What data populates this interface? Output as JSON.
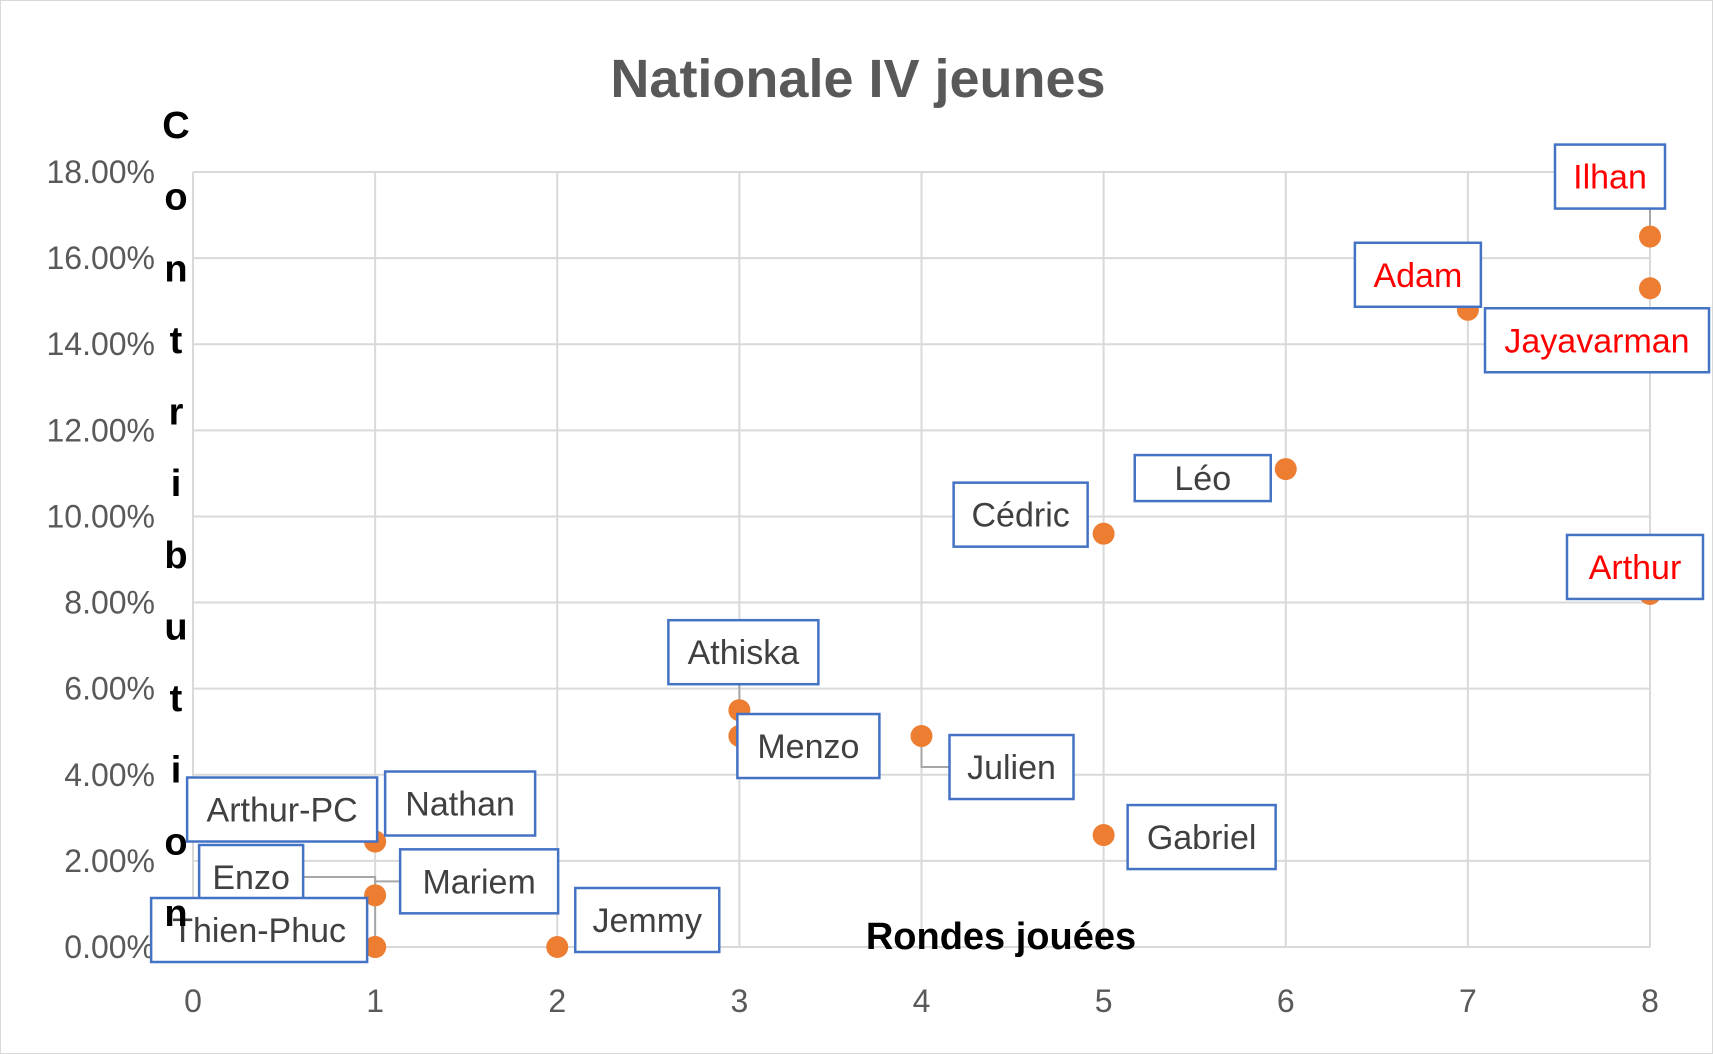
{
  "chart_data": {
    "type": "scatter",
    "title": "Nationale IV jeunes",
    "xlabel": "Rondes jouées",
    "ylabel": "Contribution",
    "xlim": [
      0,
      8
    ],
    "ylim": [
      0,
      0.18
    ],
    "x_ticks": [
      "0",
      "1",
      "2",
      "3",
      "4",
      "5",
      "6",
      "7",
      "8"
    ],
    "y_ticks": [
      "0.00%",
      "2.00%",
      "4.00%",
      "6.00%",
      "8.00%",
      "10.00%",
      "12.00%",
      "14.00%",
      "16.00%",
      "18.00%"
    ],
    "grid": true,
    "colors": {
      "marker": "#ed7d31",
      "label_border": "#4472c4",
      "label_text": "#404040",
      "label_text_highlight": "#ff0000",
      "gridline": "#d9d9d9",
      "title": "#595959"
    },
    "points": [
      {
        "name": "Ilhan",
        "x": 8,
        "y": 0.165,
        "highlight": true
      },
      {
        "name": "Jayavarman",
        "x": 8,
        "y": 0.153,
        "highlight": true
      },
      {
        "name": "Adam",
        "x": 7,
        "y": 0.148,
        "highlight": true
      },
      {
        "name": "Arthur",
        "x": 8,
        "y": 0.082,
        "highlight": true
      },
      {
        "name": "Léo",
        "x": 6,
        "y": 0.111,
        "highlight": false
      },
      {
        "name": "Cédric",
        "x": 5,
        "y": 0.096,
        "highlight": false
      },
      {
        "name": "Athiska",
        "x": 3,
        "y": 0.055,
        "highlight": false
      },
      {
        "name": "Menzo",
        "x": 3,
        "y": 0.049,
        "highlight": false
      },
      {
        "name": "Julien",
        "x": 4,
        "y": 0.049,
        "highlight": false
      },
      {
        "name": "Gabriel",
        "x": 5,
        "y": 0.026,
        "highlight": false
      },
      {
        "name": "Arthur-PC",
        "x": 1,
        "y": 0.0245,
        "highlight": false
      },
      {
        "name": "Nathan",
        "x": 1,
        "y": 0.0245,
        "highlight": false
      },
      {
        "name": "Mariem",
        "x": 1,
        "y": 0.012,
        "highlight": false
      },
      {
        "name": "Enzo",
        "x": 1,
        "y": 0.0,
        "highlight": false
      },
      {
        "name": "Thien-Phuc",
        "x": 1,
        "y": 0.0,
        "highlight": false
      },
      {
        "name": "Jemmy",
        "x": 2,
        "y": 0.0,
        "highlight": false
      }
    ]
  }
}
